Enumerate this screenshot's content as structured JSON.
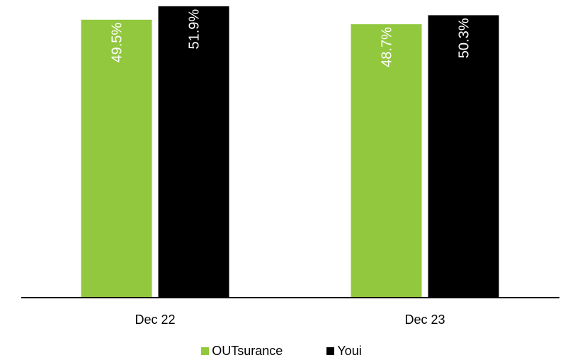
{
  "chart_data": {
    "type": "bar",
    "categories": [
      "Dec 22",
      "Dec 23"
    ],
    "series": [
      {
        "name": "OUTsurance",
        "values": [
          49.5,
          48.7
        ],
        "labels": [
          "49.5%",
          "48.7%"
        ],
        "color": "#92C83E",
        "label_color": "#ffffff"
      },
      {
        "name": "Youi",
        "values": [
          51.9,
          50.3
        ],
        "labels": [
          "51.9%",
          "50.3%"
        ],
        "color": "#000000",
        "label_color": "#ffffff"
      }
    ],
    "ylim": [
      0,
      52
    ],
    "legend_position": "bottom",
    "grid": false,
    "value_label_orientation": "vertical"
  }
}
